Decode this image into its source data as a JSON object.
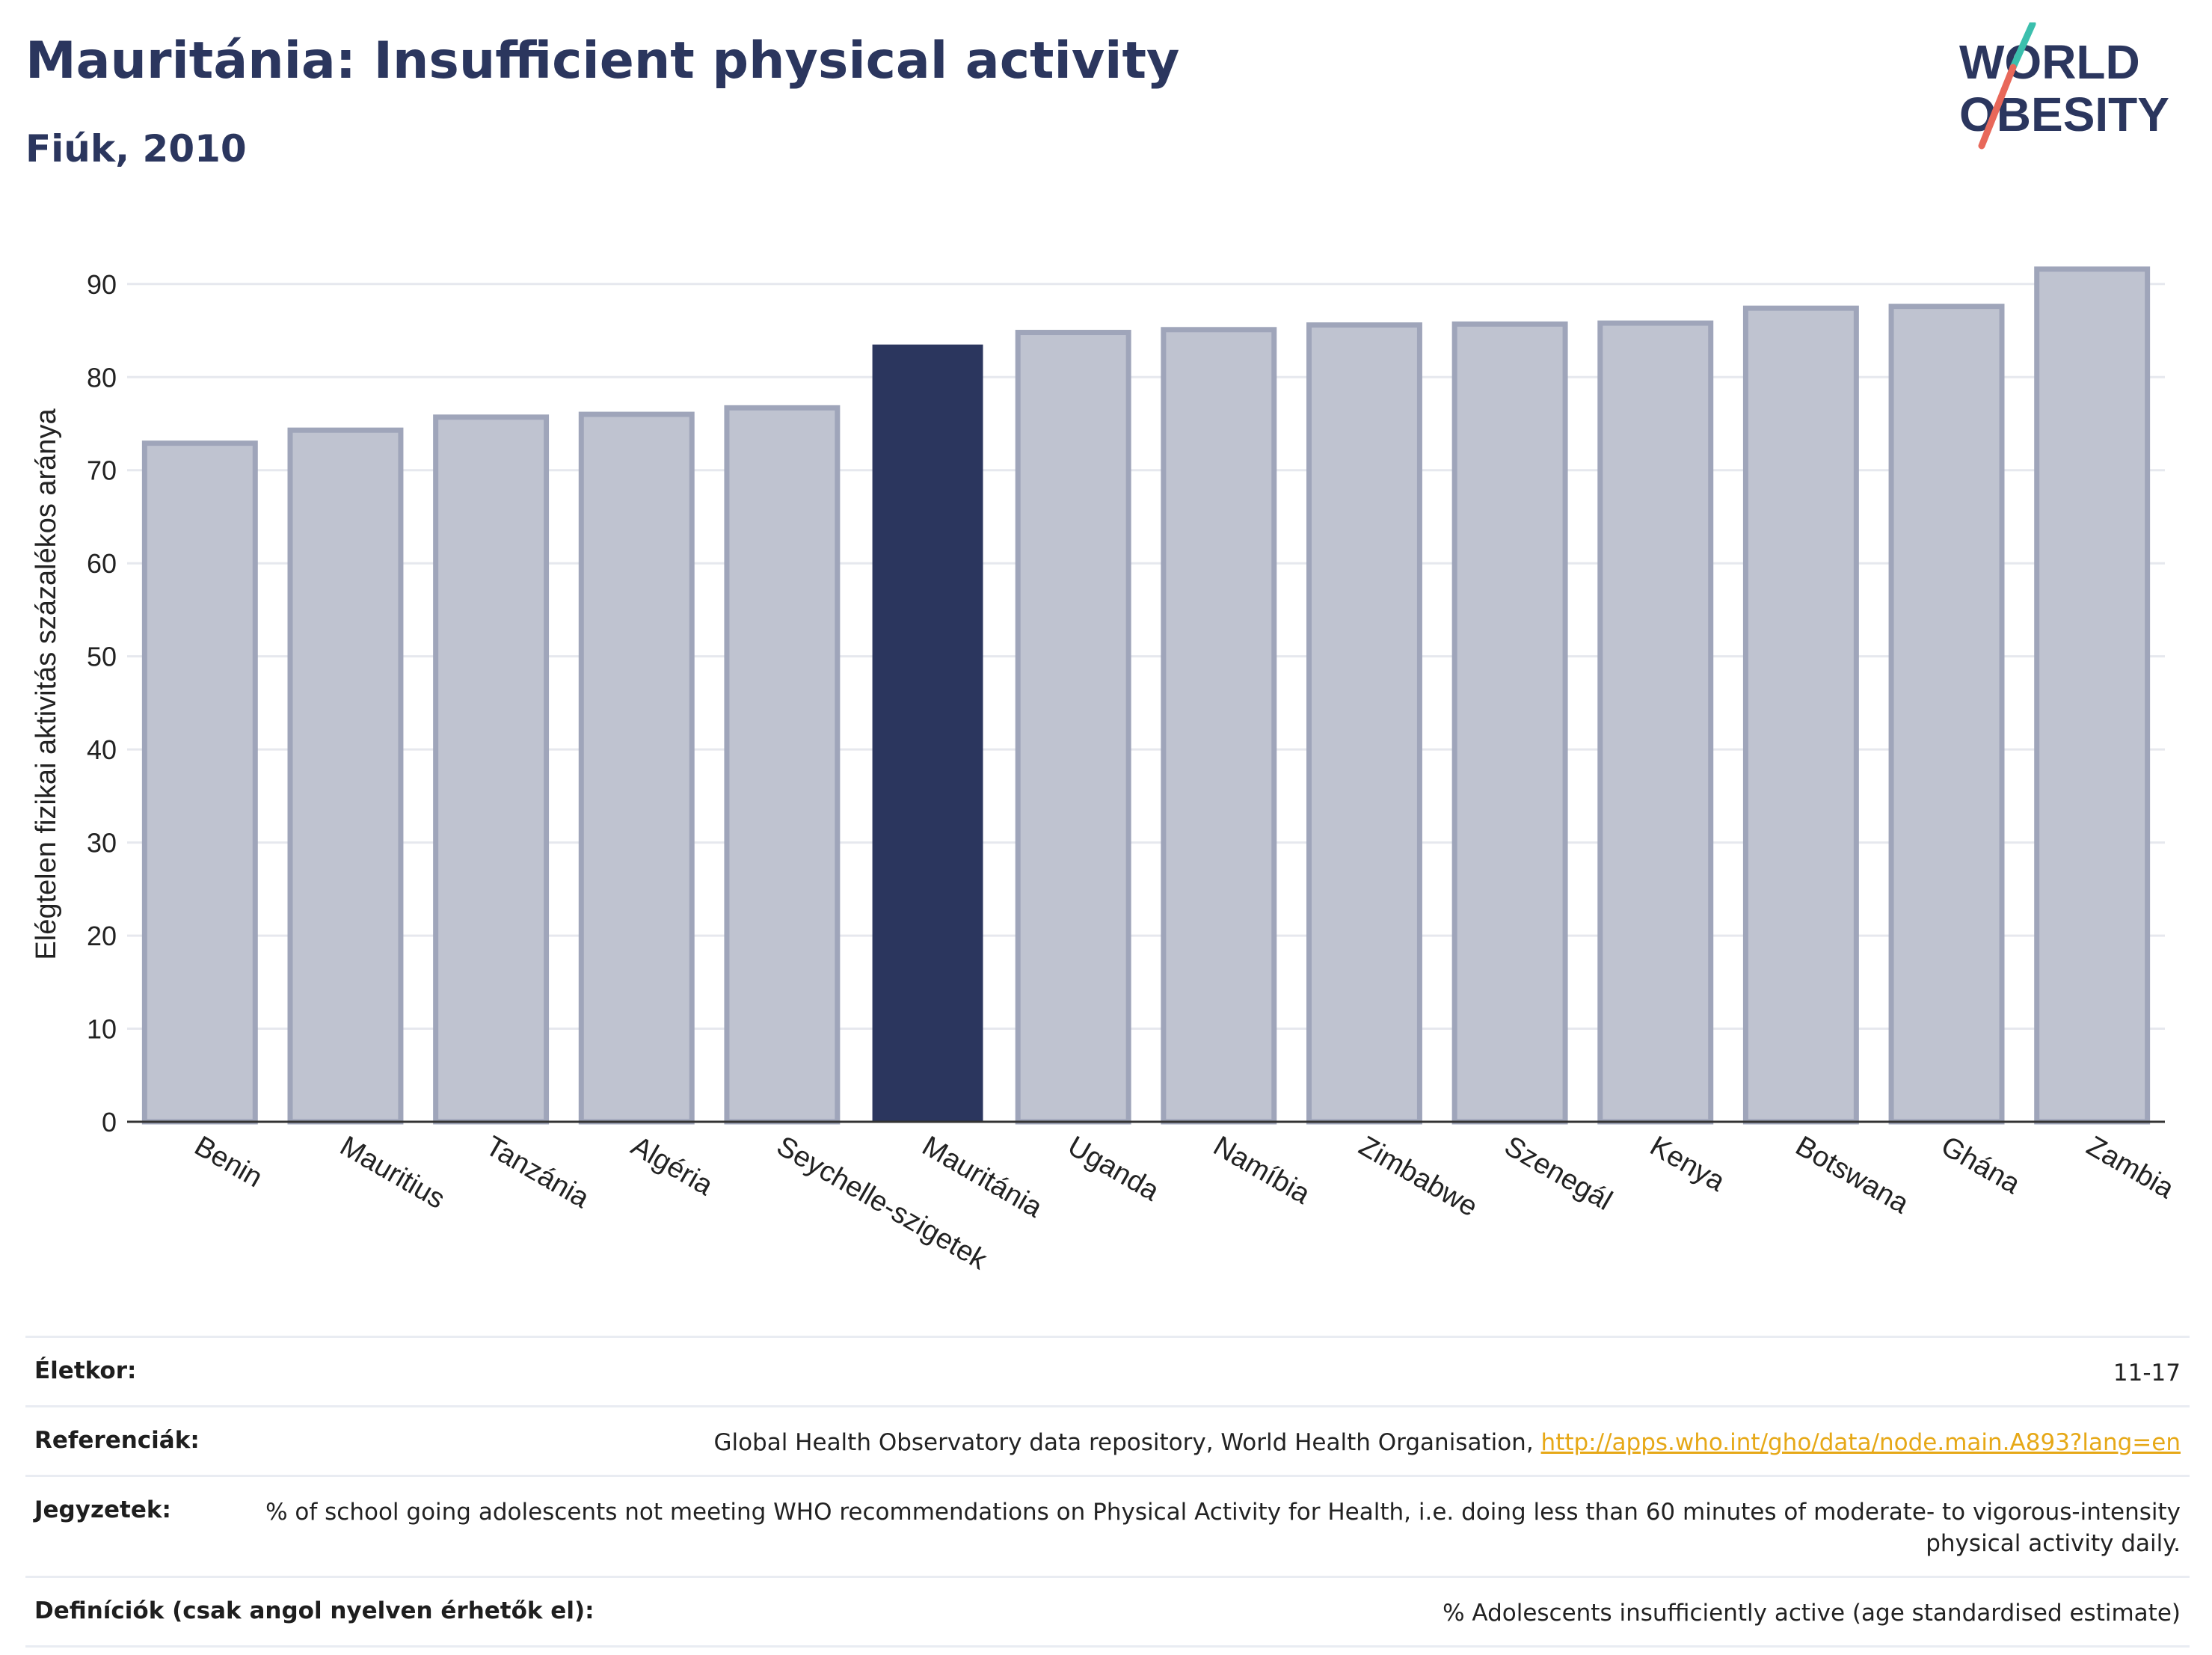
{
  "header": {
    "title": "Mauritánia: Insufficient physical activity",
    "subtitle": "Fiúk, 2010"
  },
  "logo": {
    "line1": "WORLD",
    "line2": "OBESITY",
    "accent_teal": "#3bbfad",
    "accent_red": "#e8685a",
    "text_color": "#2b365e"
  },
  "chart_data": {
    "type": "bar",
    "title": "Mauritánia: Insufficient physical activity",
    "subtitle": "Fiúk, 2010",
    "xlabel": "",
    "ylabel": "Elégtelen fizikai aktivitás százalékos aránya",
    "ylim": [
      0,
      94
    ],
    "yticks": [
      0,
      10,
      20,
      30,
      40,
      50,
      60,
      70,
      80,
      90
    ],
    "grid": true,
    "highlight_index": 5,
    "highlight_color": "#2b365e",
    "bar_color": "#bfc3d0",
    "bar_edge_color": "#9fa5ba",
    "categories": [
      "Benin",
      "Mauritius",
      "Tanzánia",
      "Algéria",
      "Seychelle-szigetek",
      "Mauritánia",
      "Uganda",
      "Namíbia",
      "Zimbabwe",
      "Szenegál",
      "Kenya",
      "Botswana",
      "Ghána",
      "Zambia"
    ],
    "values": [
      72.9,
      74.3,
      75.7,
      76.0,
      76.7,
      83.5,
      84.8,
      85.1,
      85.6,
      85.7,
      85.8,
      87.4,
      87.6,
      91.6
    ]
  },
  "meta": {
    "rows": [
      {
        "label": "Életkor:",
        "value": "11-17"
      },
      {
        "label": "Referenciák:",
        "value": "Global Health Observatory data repository, World Health Organisation, ",
        "link": "http://apps.who.int/gho/data/node.main.A893?lang=en"
      },
      {
        "label": "Jegyzetek:",
        "value": "% of school going adolescents not meeting WHO recommendations on Physical Activity for Health, i.e. doing less than 60 minutes of moderate- to vigorous-intensity physical activity daily."
      },
      {
        "label": "Definíciók (csak angol nyelven érhetők el):",
        "value": "% Adolescents insufficiently active (age standardised estimate)"
      }
    ]
  }
}
